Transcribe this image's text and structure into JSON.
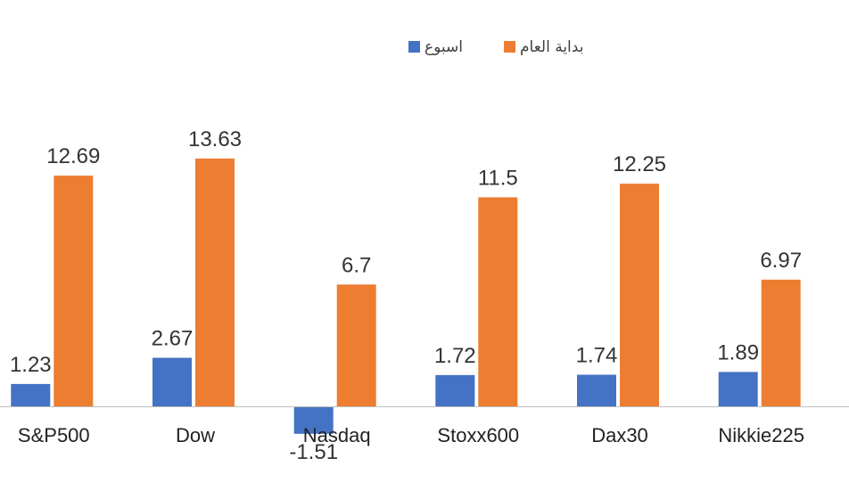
{
  "chart_data": {
    "type": "bar",
    "categories": [
      "S&P500",
      "Dow",
      "Nasdaq",
      "Stoxx600",
      "Dax30",
      "Nikkie225"
    ],
    "series": [
      {
        "name": "اسبوع",
        "color": "#4472C4",
        "values": [
          1.23,
          2.67,
          -1.51,
          1.72,
          1.74,
          1.89
        ],
        "labels": [
          "1.23",
          "2.67",
          "-1.51",
          "1.72",
          "1.74",
          "1.89"
        ]
      },
      {
        "name": "بداية العام",
        "color": "#ED7D31",
        "values": [
          12.69,
          13.63,
          6.7,
          11.5,
          12.25,
          6.97
        ],
        "labels": [
          "12.69",
          "13.63",
          "6.7",
          "11.5",
          "12.25",
          "6.97"
        ]
      }
    ],
    "legend_position": "top",
    "grid": false,
    "axis_line_color": "#BFBFBF",
    "ylim": [
      -2,
      14
    ]
  }
}
